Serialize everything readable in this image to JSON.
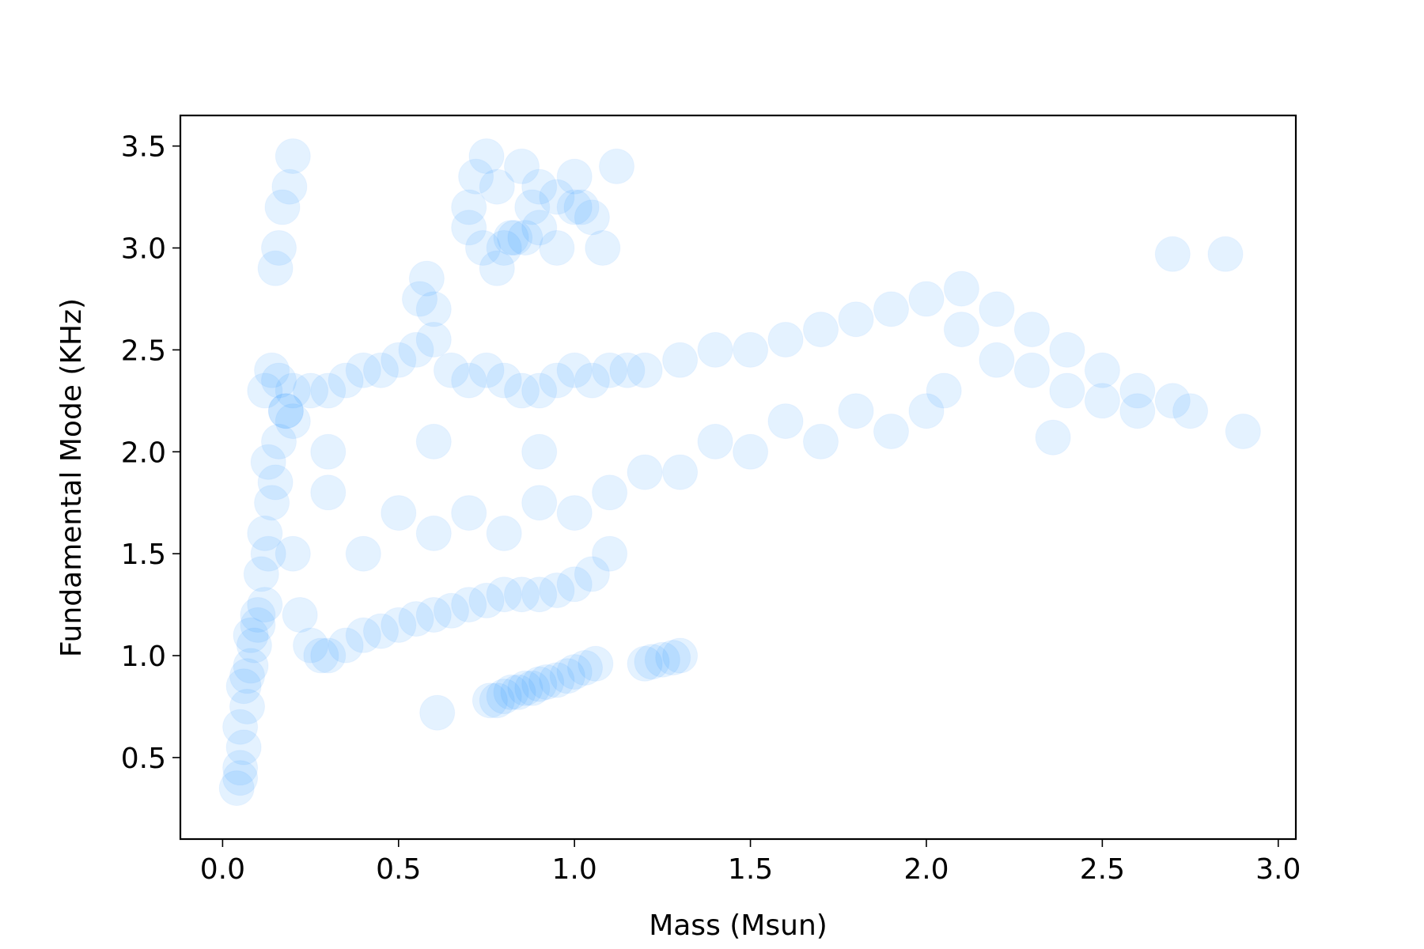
{
  "chart_data": {
    "type": "scatter",
    "title": "",
    "xlabel": "Mass (Msun)",
    "ylabel": "Fundamental Mode (KHz)",
    "xlim": [
      -0.12,
      3.05
    ],
    "ylim": [
      0.1,
      3.65
    ],
    "xticks": [
      0.0,
      0.5,
      1.0,
      1.5,
      2.0,
      2.5,
      3.0
    ],
    "xtick_labels": [
      "0.0",
      "0.5",
      "1.0",
      "1.5",
      "2.0",
      "2.5",
      "3.0"
    ],
    "yticks": [
      0.5,
      1.0,
      1.5,
      2.0,
      2.5,
      3.0,
      3.5
    ],
    "ytick_labels": [
      "0.5",
      "1.0",
      "1.5",
      "2.0",
      "2.5",
      "3.0",
      "3.5"
    ],
    "grid": false,
    "legend": "none",
    "color": "#1e90ff",
    "series": [
      {
        "x": [
          0.04,
          0.05,
          0.06,
          0.05,
          0.07,
          0.06,
          0.08,
          0.05,
          0.09,
          0.07,
          0.1,
          0.08,
          0.12,
          0.1,
          0.11,
          0.13,
          0.12,
          0.14,
          0.15,
          0.13,
          0.16,
          0.18,
          0.2,
          0.22,
          0.25,
          0.28,
          0.3,
          0.35,
          0.4,
          0.45,
          0.5,
          0.55,
          0.6,
          0.65,
          0.7,
          0.75,
          0.8,
          0.85,
          0.9,
          0.95,
          1.0,
          1.05,
          1.1,
          0.12,
          0.14,
          0.16,
          0.18,
          0.2,
          0.25,
          0.3,
          0.35,
          0.4,
          0.45,
          0.5,
          0.55,
          0.6,
          0.65,
          0.7,
          0.75,
          0.8,
          0.85,
          0.9,
          0.95,
          1.0,
          1.05,
          1.1,
          1.15,
          1.2,
          1.3,
          1.4,
          1.5,
          1.6,
          1.7,
          1.8,
          1.9,
          2.0,
          2.1,
          2.2,
          2.3,
          2.4,
          2.5,
          2.6,
          2.7,
          2.75,
          0.3,
          0.5,
          0.7,
          0.9,
          1.1,
          1.3,
          1.5,
          1.7,
          1.9,
          2.05,
          2.1,
          2.2,
          2.3,
          2.4,
          2.5,
          2.6,
          0.2,
          0.4,
          0.6,
          0.8,
          1.0,
          1.2,
          1.4,
          1.6,
          1.8,
          2.0,
          0.3,
          0.6,
          0.9,
          0.56,
          0.58,
          0.6,
          0.7,
          0.72,
          0.75,
          0.78,
          0.8,
          0.83,
          0.85,
          0.88,
          0.9,
          0.95,
          1.0,
          1.02,
          1.05,
          1.08,
          1.12,
          0.7,
          0.74,
          0.78,
          0.82,
          0.86,
          0.9,
          0.95,
          1.0,
          0.15,
          0.17,
          0.19,
          0.2,
          0.16,
          0.61,
          0.76,
          0.78,
          0.8,
          0.82,
          0.84,
          0.86,
          0.88,
          0.9,
          0.92,
          0.95,
          0.98,
          1.0,
          1.03,
          1.06,
          1.2,
          1.22,
          1.25,
          1.28,
          1.3,
          2.36,
          2.85,
          2.9,
          2.7
        ],
        "y": [
          0.35,
          0.45,
          0.55,
          0.65,
          0.75,
          0.85,
          0.95,
          0.4,
          1.05,
          0.9,
          1.15,
          1.1,
          1.25,
          1.2,
          1.4,
          1.5,
          1.6,
          1.75,
          1.85,
          1.95,
          2.05,
          2.2,
          2.3,
          1.2,
          1.05,
          1.0,
          1.0,
          1.05,
          1.1,
          1.12,
          1.15,
          1.18,
          1.2,
          1.22,
          1.25,
          1.27,
          1.3,
          1.3,
          1.3,
          1.32,
          1.35,
          1.4,
          1.5,
          2.3,
          2.4,
          2.35,
          2.2,
          2.15,
          2.3,
          2.3,
          2.35,
          2.4,
          2.4,
          2.45,
          2.5,
          2.55,
          2.4,
          2.35,
          2.4,
          2.35,
          2.3,
          2.3,
          2.35,
          2.4,
          2.35,
          2.4,
          2.4,
          2.4,
          2.45,
          2.5,
          2.5,
          2.55,
          2.6,
          2.65,
          2.7,
          2.75,
          2.8,
          2.7,
          2.6,
          2.5,
          2.4,
          2.3,
          2.25,
          2.2,
          1.8,
          1.7,
          1.7,
          1.75,
          1.8,
          1.9,
          2.0,
          2.05,
          2.1,
          2.3,
          2.6,
          2.45,
          2.4,
          2.3,
          2.25,
          2.2,
          1.5,
          1.5,
          1.6,
          1.6,
          1.7,
          1.9,
          2.05,
          2.15,
          2.2,
          2.2,
          2.0,
          2.05,
          2.0,
          2.75,
          2.85,
          2.7,
          3.2,
          3.35,
          3.45,
          3.3,
          3.0,
          3.05,
          3.4,
          3.2,
          3.3,
          3.25,
          3.35,
          3.2,
          3.15,
          3.0,
          3.4,
          3.1,
          3.0,
          2.9,
          3.05,
          3.05,
          3.1,
          3.0,
          3.2,
          2.9,
          3.2,
          3.3,
          3.45,
          3.0,
          0.72,
          0.78,
          0.78,
          0.8,
          0.82,
          0.82,
          0.84,
          0.84,
          0.86,
          0.87,
          0.88,
          0.9,
          0.92,
          0.94,
          0.96,
          0.96,
          0.97,
          0.98,
          0.99,
          1.0,
          2.07,
          2.97,
          2.1,
          2.97
        ]
      }
    ]
  }
}
